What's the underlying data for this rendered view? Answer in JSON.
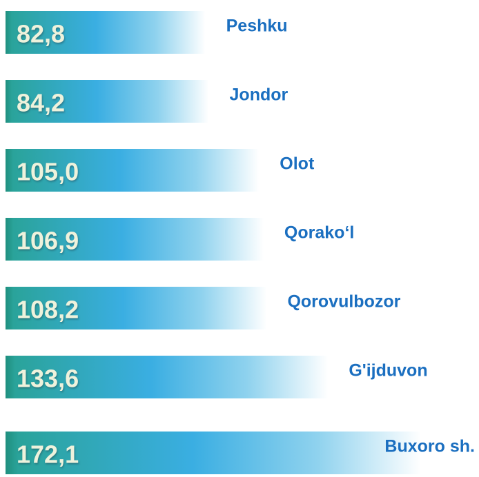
{
  "chart_data": {
    "type": "bar",
    "categories": [
      "Peshku",
      "Jondor",
      "Olot",
      "Qorako‘l",
      "Qorovulbozor",
      "G'ijduvon",
      "Buxoro sh."
    ],
    "values": [
      82.8,
      84.2,
      105.0,
      106.9,
      108.2,
      133.6,
      172.1
    ],
    "value_labels": [
      "82,8",
      "84,2",
      "105,0",
      "106,9",
      "108,2",
      "133,6",
      "172,1"
    ]
  }
}
